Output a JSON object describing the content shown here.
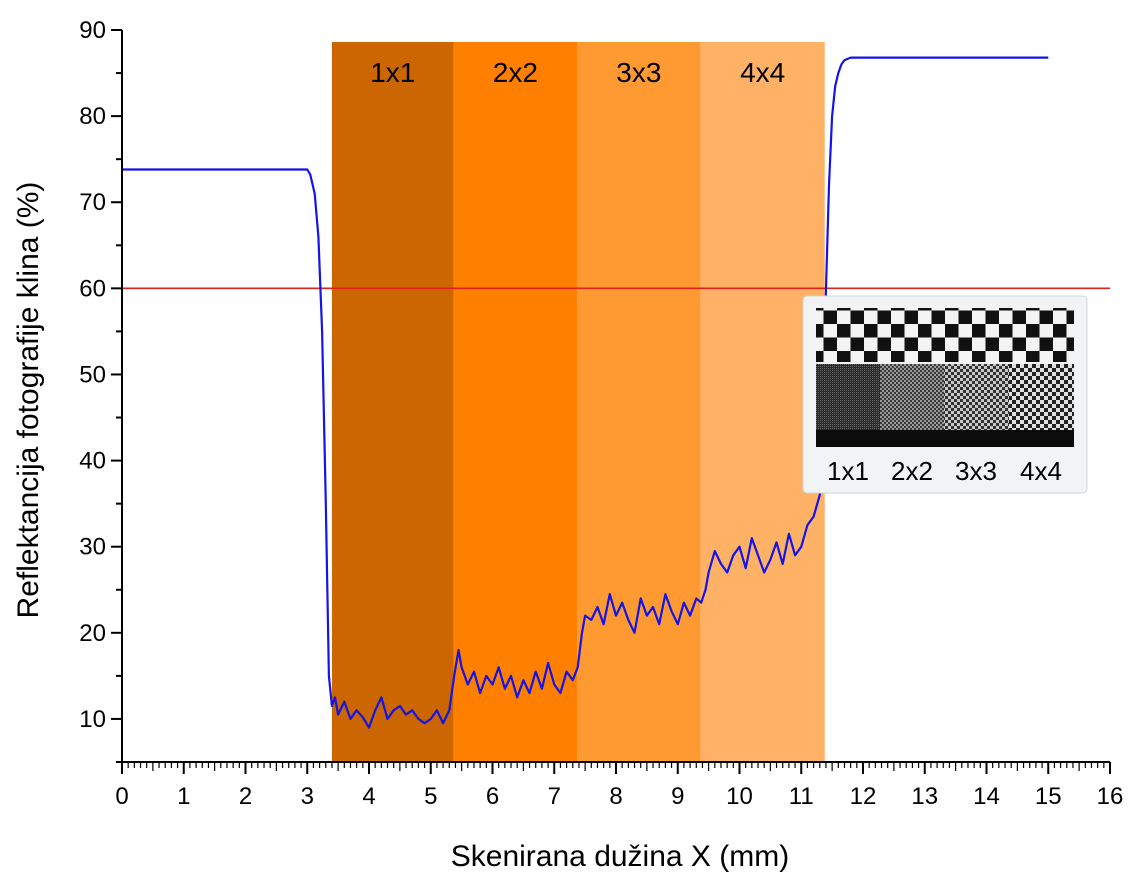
{
  "chart_data": {
    "type": "line",
    "xlabel": "Skenirana dužina X (mm)",
    "ylabel": "Reflektancija fotografije klina (%)",
    "xlim": [
      0,
      16
    ],
    "ylim": [
      5,
      90
    ],
    "xticks": [
      0,
      1,
      2,
      3,
      4,
      5,
      6,
      7,
      8,
      9,
      10,
      11,
      12,
      13,
      14,
      15,
      16
    ],
    "yticks": [
      10,
      20,
      30,
      40,
      50,
      60,
      70,
      80,
      90
    ],
    "threshold": {
      "y": 60,
      "color": "#e0221c"
    },
    "series": [
      {
        "color": "#1414e6",
        "x": [
          0,
          3.0,
          3.05,
          3.12,
          3.18,
          3.24,
          3.3,
          3.35,
          3.4,
          3.45,
          3.5,
          3.6,
          3.7,
          3.8,
          3.9,
          4.0,
          4.1,
          4.2,
          4.3,
          4.4,
          4.5,
          4.6,
          4.7,
          4.8,
          4.9,
          5.0,
          5.1,
          5.2,
          5.3,
          5.38,
          5.45,
          5.5,
          5.6,
          5.7,
          5.8,
          5.9,
          6.0,
          6.1,
          6.2,
          6.3,
          6.4,
          6.5,
          6.6,
          6.7,
          6.8,
          6.9,
          7.0,
          7.1,
          7.2,
          7.3,
          7.38,
          7.45,
          7.5,
          7.6,
          7.7,
          7.8,
          7.9,
          8.0,
          8.1,
          8.2,
          8.3,
          8.4,
          8.5,
          8.6,
          8.7,
          8.8,
          8.9,
          9.0,
          9.1,
          9.2,
          9.3,
          9.38,
          9.45,
          9.5,
          9.6,
          9.7,
          9.8,
          9.9,
          10.0,
          10.1,
          10.2,
          10.3,
          10.4,
          10.5,
          10.6,
          10.7,
          10.8,
          10.9,
          11.0,
          11.1,
          11.2,
          11.3,
          11.35,
          11.4,
          11.45,
          11.5,
          11.55,
          11.6,
          11.65,
          11.7,
          11.8,
          12.0,
          15.0
        ],
        "y": [
          73.8,
          73.8,
          73.2,
          71.0,
          66.0,
          55.0,
          35.0,
          15.0,
          11.5,
          12.5,
          10.5,
          12.0,
          10.0,
          11.0,
          10.2,
          9.0,
          11.0,
          12.5,
          10.0,
          11.0,
          11.5,
          10.5,
          11.0,
          10.0,
          9.5,
          10.0,
          11.0,
          9.5,
          11.0,
          15.0,
          18.0,
          16.0,
          14.0,
          15.5,
          13.0,
          15.0,
          14.0,
          16.0,
          13.5,
          15.0,
          12.5,
          14.5,
          13.0,
          15.5,
          13.5,
          16.5,
          14.0,
          13.0,
          15.5,
          14.5,
          16.0,
          20.0,
          22.0,
          21.5,
          23.0,
          21.0,
          24.5,
          22.0,
          23.5,
          21.5,
          20.0,
          24.0,
          22.0,
          23.0,
          21.0,
          24.5,
          22.5,
          21.0,
          23.5,
          22.0,
          24.0,
          23.5,
          25.0,
          27.0,
          29.5,
          28.0,
          27.0,
          29.0,
          30.0,
          27.5,
          31.0,
          29.0,
          27.0,
          28.5,
          30.5,
          28.0,
          31.5,
          29.0,
          30.0,
          32.5,
          33.5,
          36.0,
          45.0,
          60.0,
          72.0,
          80.0,
          83.5,
          85.0,
          86.0,
          86.5,
          86.8,
          86.8,
          86.8
        ]
      }
    ],
    "bands": [
      {
        "label": "1x1",
        "x0": 3.4,
        "x1": 5.37,
        "color": "#cc6600"
      },
      {
        "label": "2x2",
        "x0": 5.37,
        "x1": 7.37,
        "color": "#ff8000"
      },
      {
        "label": "3x3",
        "x0": 7.37,
        "x1": 9.37,
        "color": "#ff9a33"
      },
      {
        "label": "4x4",
        "x0": 9.37,
        "x1": 11.38,
        "color": "#ffb266"
      }
    ],
    "inset": {
      "labels": [
        "1x1",
        "2x2",
        "3x3",
        "4x4"
      ]
    }
  }
}
